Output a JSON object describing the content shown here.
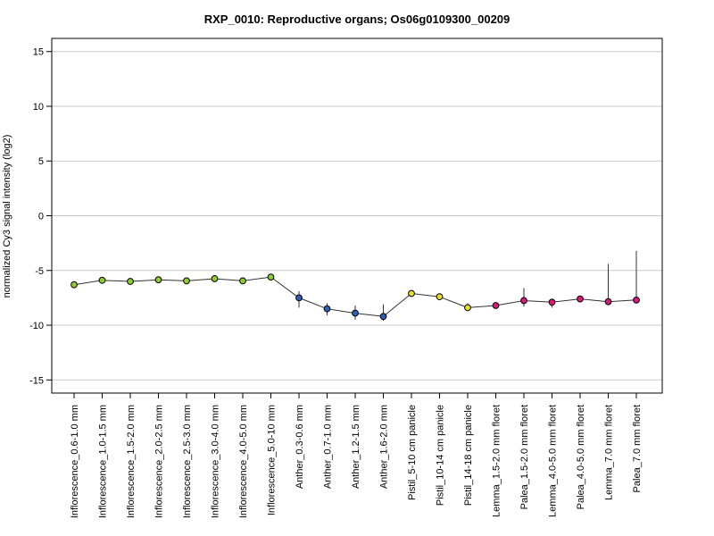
{
  "chart_data": {
    "type": "line",
    "title": "RXP_0010: Reproductive organs; Os06g0109300_00209",
    "xlabel": "",
    "ylabel": "normalized Cy3 signal intensity (log2)",
    "ylim": [
      -16.2,
      16.2
    ],
    "yticks": [
      -15,
      -10,
      -5,
      0,
      5,
      10,
      15
    ],
    "grid": true,
    "categories": [
      "Inflorescence_0.6-1.0 mm",
      "Inflorescence_1.0-1.5 mm",
      "Inflorescence_1.5-2.0 mm",
      "Inflorescence_2.0-2.5 mm",
      "Inflorescence_2.5-3.0 mm",
      "Inflorescence_3.0-4.0 mm",
      "Inflorescence_4.0-5.0 mm",
      "Inflorescence_5.0-10 mm",
      "Anther_0.3-0.6 mm",
      "Anther_0.7-1.0 mm",
      "Anther_1.2-1.5 mm",
      "Anther_1.6-2.0 mm",
      "Pistil_5-10 cm panicle",
      "Pistil_10-14 cm panicle",
      "Pistil_14-18 cm panicle",
      "Lemma_1.5-2.0 mm floret",
      "Palea_1.5-2.0 mm floret",
      "Lemma_4.0-5.0 mm floret",
      "Palea_4.0-5.0 mm floret",
      "Lemma_7.0 mm floret",
      "Palea_7.0 mm floret"
    ],
    "series": [
      {
        "values": [
          -6.3,
          -5.9,
          -6.0,
          -5.85,
          -5.95,
          -5.75,
          -5.95,
          -5.6,
          -7.5,
          -8.5,
          -8.9,
          -9.2,
          -7.1,
          -7.4,
          -8.4,
          -8.2,
          -7.75,
          -7.9,
          -7.6,
          -7.85,
          -7.7
        ],
        "err_low": [
          -6.4,
          -6.0,
          -6.1,
          -5.95,
          -6.05,
          -5.85,
          -6.05,
          -5.9,
          -8.4,
          -9.1,
          -9.5,
          -9.6,
          -7.25,
          -7.55,
          -8.6,
          -8.35,
          -8.3,
          -8.4,
          -7.8,
          -8.0,
          -7.9
        ],
        "err_high": [
          -6.2,
          -5.8,
          -5.9,
          -5.75,
          -5.85,
          -5.65,
          -5.85,
          -5.3,
          -6.9,
          -8.0,
          -8.2,
          -8.1,
          -6.95,
          -7.25,
          -8.0,
          -8.05,
          -6.6,
          -7.6,
          -7.4,
          -4.4,
          -3.2
        ],
        "colors": [
          "#8fce2a",
          "#8fce2a",
          "#8fce2a",
          "#8fce2a",
          "#8fce2a",
          "#8fce2a",
          "#8fce2a",
          "#8fce2a",
          "#2f5fb3",
          "#2f5fb3",
          "#2f5fb3",
          "#2f5fb3",
          "#e6e02a",
          "#e6e02a",
          "#e6e02a",
          "#d81b7b",
          "#d81b7b",
          "#d81b7b",
          "#d81b7b",
          "#d81b7b",
          "#d81b7b"
        ]
      }
    ]
  }
}
